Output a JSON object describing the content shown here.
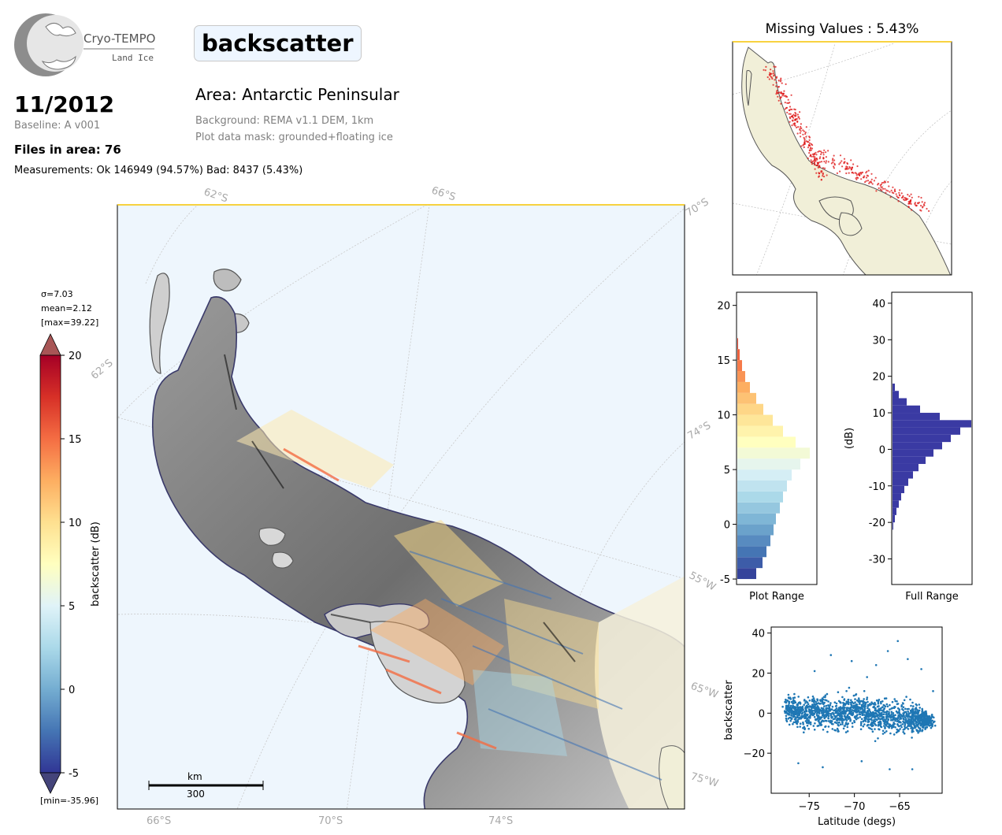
{
  "logo": {
    "name": "Cryo-TEMPO",
    "subtitle": "Land Ice"
  },
  "parameter": "backscatter",
  "date": "11/2012",
  "baseline": "Baseline: A v001",
  "files": "Files in area: 76",
  "measurements": "Measurements: Ok 146949 (94.57%) Bad: 8437 (5.43%)",
  "area": "Area: Antarctic Peninsular",
  "background": "Background: REMA v1.1 DEM, 1km",
  "mask": "Plot data mask: grounded+floating ice",
  "missing_title": "Missing Values : 5.43%",
  "colors": {
    "ocean": "#eef6fd",
    "land": "#f1efd8",
    "missing": "#dd1111",
    "full_hist": "#3a3aa3",
    "scatter": "#1f77b4",
    "frame_accent": "#f5c400"
  },
  "main_map": {
    "grid_labels": [
      {
        "text": "62°S"
      },
      {
        "text": "66°S"
      },
      {
        "text": "70°S"
      },
      {
        "text": "62°S"
      },
      {
        "text": "74°S"
      },
      {
        "text": "55°W"
      },
      {
        "text": "65°W"
      },
      {
        "text": "75°W"
      },
      {
        "text": "66°S"
      },
      {
        "text": "70°S"
      },
      {
        "text": "74°S"
      }
    ],
    "scalebar": {
      "unit": "km",
      "value": "300"
    }
  },
  "colorbar": {
    "label": "backscatter (dB)",
    "stats": [
      "σ=7.03",
      "mean=2.12",
      "[max=39.22]"
    ],
    "min_label": "[min=-35.96]",
    "ticks": [
      -5,
      0,
      5,
      10,
      15,
      20
    ],
    "range": [
      -5,
      20
    ],
    "cmap": "RdYlBu_r"
  },
  "chart_data": [
    {
      "type": "bar",
      "name": "plot-range-histogram",
      "orientation": "horizontal",
      "xlabel": "Plot Range",
      "ylabel": "",
      "ylim": [
        -5.5,
        21.2
      ],
      "yticks": [
        -5,
        0,
        5,
        10,
        15,
        20
      ],
      "bins": [
        -5,
        -4,
        -3,
        -2,
        -1,
        0,
        1,
        2,
        3,
        4,
        5,
        6,
        7,
        8,
        9,
        10,
        11,
        12,
        13,
        14,
        15,
        16
      ],
      "counts": [
        0.24,
        0.32,
        0.37,
        0.42,
        0.46,
        0.49,
        0.54,
        0.58,
        0.63,
        0.69,
        0.8,
        0.92,
        0.74,
        0.58,
        0.45,
        0.33,
        0.24,
        0.16,
        0.1,
        0.06,
        0.03,
        0.01
      ]
    },
    {
      "type": "bar",
      "name": "full-range-histogram",
      "orientation": "horizontal",
      "xlabel": "Full Range",
      "ylabel": "(dB)",
      "ylim": [
        -37,
        43
      ],
      "yticks": [
        -30,
        -20,
        -10,
        0,
        10,
        20,
        30,
        40
      ],
      "bins": [
        -22,
        -20,
        -18,
        -16,
        -14,
        -12,
        -10,
        -8,
        -6,
        -4,
        -2,
        0,
        2,
        4,
        6,
        8,
        10,
        12,
        14,
        16
      ],
      "counts": [
        0.01,
        0.03,
        0.05,
        0.08,
        0.11,
        0.15,
        0.2,
        0.26,
        0.33,
        0.42,
        0.52,
        0.63,
        0.74,
        0.86,
        1.0,
        0.6,
        0.35,
        0.18,
        0.08,
        0.03
      ]
    },
    {
      "type": "scatter",
      "name": "backscatter-vs-latitude",
      "xlabel": "Latitude (degs)",
      "ylabel": "backscatter",
      "xlim": [
        -79.2,
        -60.3
      ],
      "ylim": [
        -40,
        43
      ],
      "xticks": [
        -75,
        -70,
        -65
      ],
      "yticks": [
        -20,
        0,
        20,
        40
      ],
      "bands": [
        {
          "x": -77.5,
          "mean": 2,
          "spread": 9
        },
        {
          "x": -76,
          "mean": 0,
          "spread": 11
        },
        {
          "x": -74,
          "mean": 1,
          "spread": 12
        },
        {
          "x": -72,
          "mean": -1,
          "spread": 12
        },
        {
          "x": -70,
          "mean": 2,
          "spread": 11
        },
        {
          "x": -68,
          "mean": -1,
          "spread": 12
        },
        {
          "x": -66,
          "mean": -2,
          "spread": 13
        },
        {
          "x": -64,
          "mean": -2,
          "spread": 12
        },
        {
          "x": -62.5,
          "mean": -3,
          "spread": 8
        },
        {
          "x": -61.5,
          "mean": -4,
          "spread": 5
        }
      ],
      "outliers": [
        {
          "x": -65.2,
          "y": 36
        },
        {
          "x": -66.3,
          "y": 31
        },
        {
          "x": -72.6,
          "y": 29
        },
        {
          "x": -64.1,
          "y": 27
        },
        {
          "x": -70.3,
          "y": 26
        },
        {
          "x": -67.6,
          "y": 24
        },
        {
          "x": -62.6,
          "y": 22
        },
        {
          "x": -74.4,
          "y": 21
        },
        {
          "x": -68.6,
          "y": 18
        },
        {
          "x": -61.3,
          "y": 11
        },
        {
          "x": -63.6,
          "y": -28
        },
        {
          "x": -76.2,
          "y": -25
        },
        {
          "x": -73.5,
          "y": -27
        },
        {
          "x": -69.2,
          "y": -24
        },
        {
          "x": -66.1,
          "y": -28
        }
      ]
    }
  ]
}
